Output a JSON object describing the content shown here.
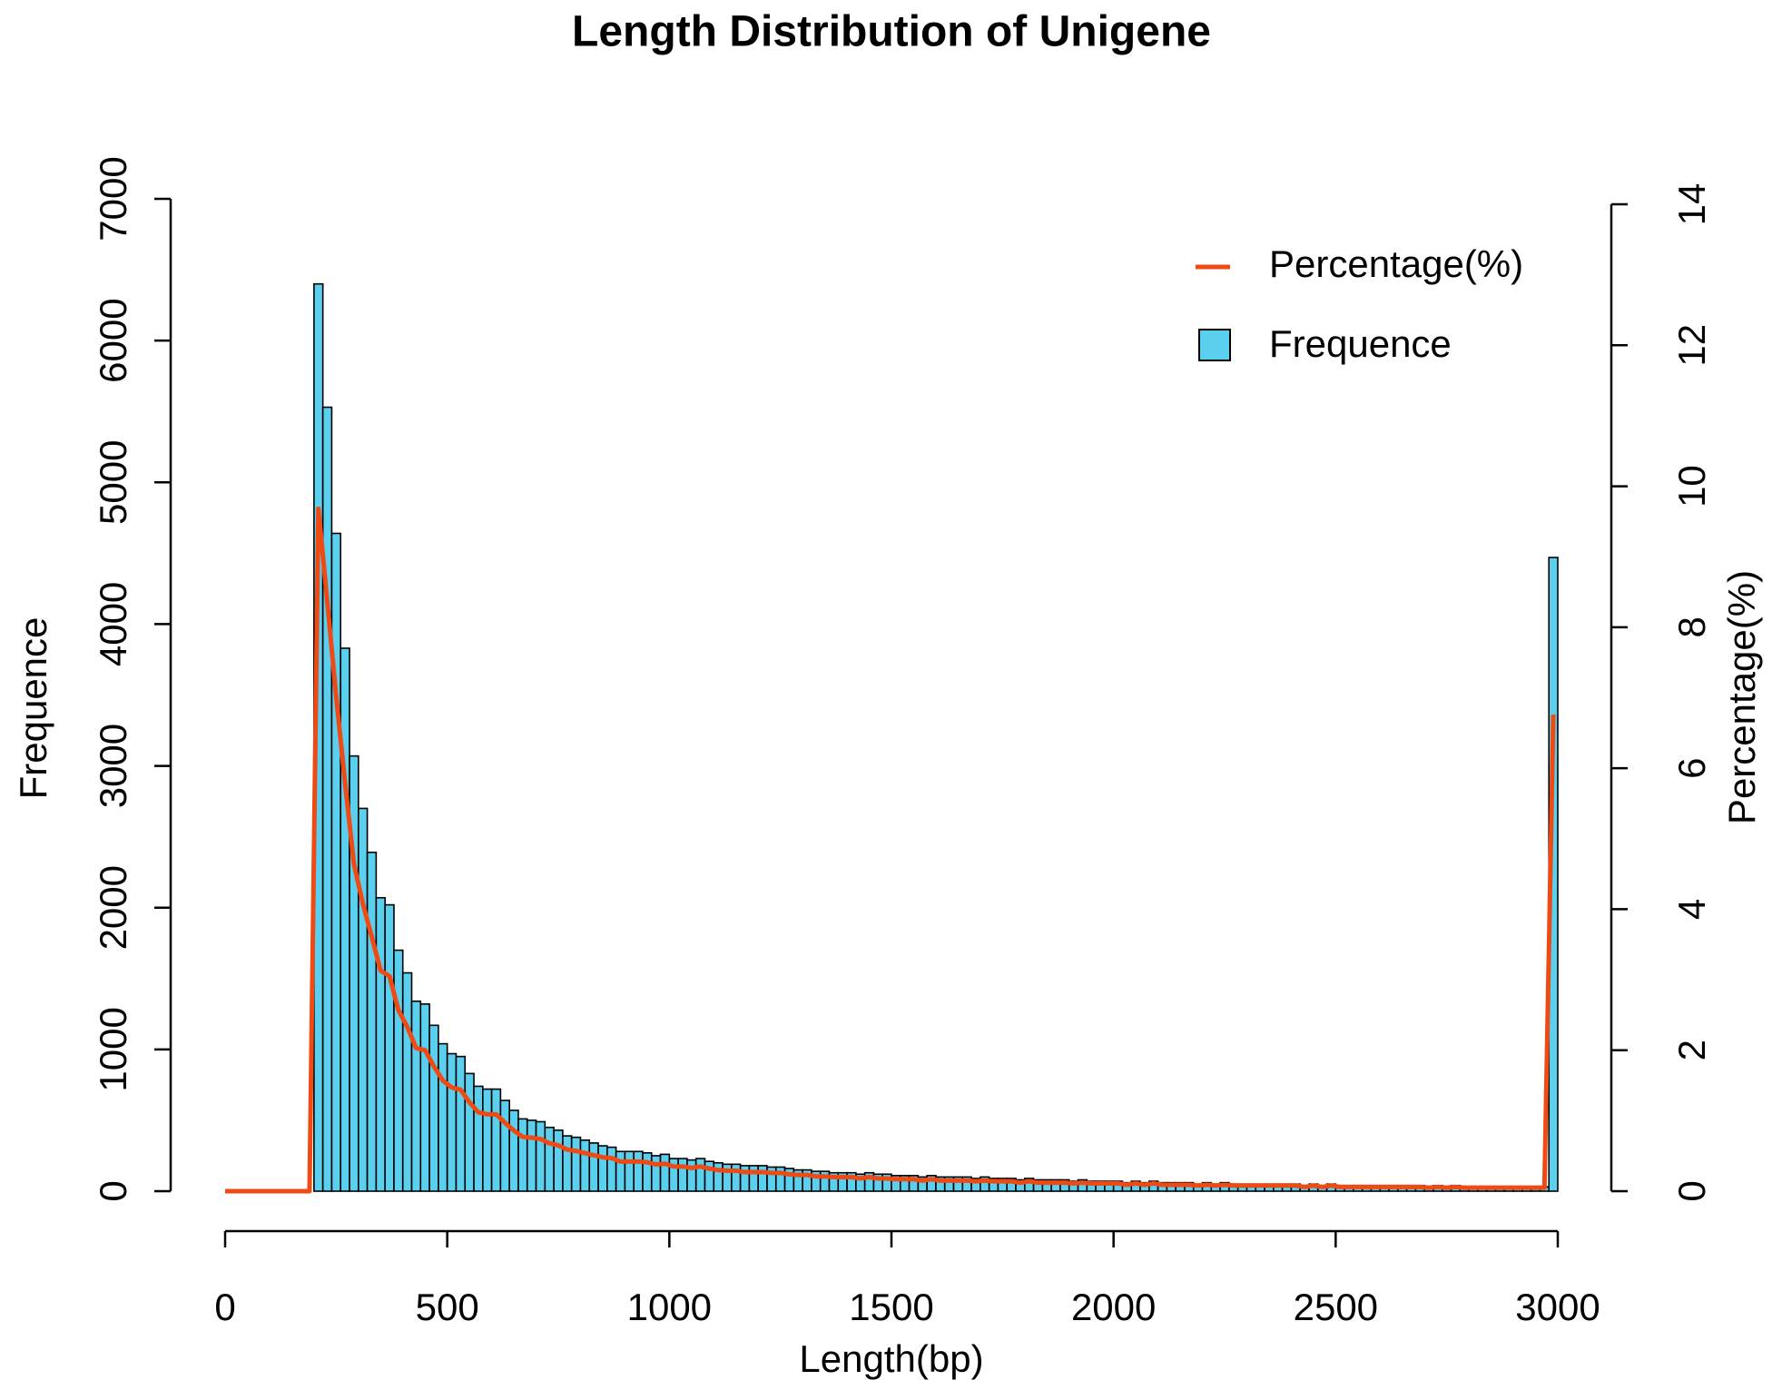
{
  "chart_data": {
    "type": "histogram",
    "title": "Length Distribution of Unigene",
    "xlabel": "Length(bp)",
    "ylabel": "Frequence",
    "y2label": "Percentage(%)",
    "name": "Frequence",
    "color": "#5bcfee",
    "bins": [
      200,
      220,
      240,
      260,
      280,
      300,
      320,
      340,
      360,
      380,
      400,
      420,
      440,
      460,
      480,
      500,
      520,
      540,
      560,
      580,
      600,
      620,
      640,
      660,
      680,
      700,
      720,
      740,
      760,
      780,
      800,
      820,
      840,
      860,
      880,
      900,
      920,
      940,
      960,
      980,
      1000,
      1020,
      1040,
      1060,
      1080,
      1100,
      1120,
      1140,
      1160,
      1180,
      1200,
      1220,
      1240,
      1260,
      1280,
      1300,
      1320,
      1340,
      1360,
      1380,
      1400,
      1420,
      1440,
      1460,
      1480,
      1500,
      1520,
      1540,
      1560,
      1580,
      1600,
      1620,
      1640,
      1660,
      1680,
      1700,
      1720,
      1740,
      1760,
      1780,
      1800,
      1820,
      1840,
      1860,
      1880,
      1900,
      1920,
      1940,
      1960,
      1980,
      2000,
      2020,
      2040,
      2060,
      2080,
      2100,
      2120,
      2140,
      2160,
      2180,
      2200,
      2220,
      2240,
      2260,
      2280,
      2300,
      2320,
      2340,
      2360,
      2380,
      2400,
      2420,
      2440,
      2460,
      2480,
      2500,
      2520,
      2540,
      2560,
      2580,
      2600,
      2620,
      2640,
      2660,
      2680,
      2700,
      2720,
      2740,
      2760,
      2780,
      2800,
      2820,
      2840,
      2860,
      2880,
      2900,
      2920,
      2940,
      2960,
      2980,
      3000
    ],
    "counts": [
      6400,
      5530,
      4640,
      3830,
      3070,
      2700,
      2390,
      2070,
      2020,
      1700,
      1540,
      1340,
      1320,
      1170,
      1040,
      970,
      950,
      830,
      740,
      720,
      720,
      640,
      570,
      510,
      500,
      490,
      450,
      430,
      390,
      380,
      360,
      340,
      320,
      310,
      280,
      280,
      280,
      270,
      250,
      260,
      230,
      230,
      220,
      230,
      210,
      200,
      190,
      190,
      180,
      180,
      180,
      170,
      170,
      160,
      150,
      150,
      140,
      140,
      130,
      130,
      130,
      120,
      130,
      120,
      120,
      110,
      110,
      110,
      100,
      110,
      100,
      100,
      100,
      100,
      90,
      100,
      90,
      90,
      90,
      80,
      90,
      80,
      80,
      80,
      80,
      70,
      80,
      70,
      70,
      70,
      70,
      60,
      70,
      60,
      70,
      60,
      60,
      60,
      60,
      50,
      60,
      50,
      60,
      50,
      50,
      50,
      50,
      50,
      50,
      50,
      50,
      40,
      50,
      40,
      50,
      40,
      40,
      40,
      40,
      40,
      40,
      40,
      40,
      40,
      40,
      30,
      40,
      30,
      40,
      30,
      30,
      30,
      30,
      30,
      30,
      30,
      30,
      30,
      30,
      4470
    ],
    "line": {
      "name": "Percentage(%)",
      "color": "#f04a14",
      "axis": "y2",
      "x": [
        0,
        190,
        210,
        230,
        250,
        270,
        290,
        310,
        330,
        350,
        370,
        390,
        410,
        430,
        450,
        470,
        490,
        510,
        530,
        550,
        570,
        590,
        610,
        630,
        650,
        670,
        690,
        710,
        730,
        750,
        770,
        790,
        810,
        830,
        850,
        870,
        890,
        910,
        930,
        950,
        970,
        990,
        1010,
        1030,
        1050,
        1070,
        1090,
        1110,
        1130,
        1150,
        1170,
        1190,
        1210,
        1230,
        1250,
        1270,
        1290,
        1310,
        1330,
        1350,
        1370,
        1390,
        1410,
        1430,
        1450,
        1470,
        1490,
        1510,
        1530,
        1550,
        1570,
        1590,
        1610,
        1630,
        1650,
        1670,
        1690,
        1710,
        1730,
        1750,
        1770,
        1790,
        1810,
        1830,
        1850,
        1870,
        1890,
        1910,
        1930,
        1950,
        1970,
        1990,
        2010,
        2030,
        2050,
        2070,
        2090,
        2110,
        2130,
        2150,
        2170,
        2190,
        2210,
        2230,
        2250,
        2270,
        2290,
        2310,
        2330,
        2350,
        2370,
        2390,
        2410,
        2430,
        2450,
        2470,
        2490,
        2510,
        2530,
        2550,
        2570,
        2590,
        2610,
        2630,
        2650,
        2670,
        2690,
        2710,
        2730,
        2750,
        2770,
        2790,
        2810,
        2830,
        2850,
        2870,
        2890,
        2910,
        2930,
        2950,
        2970,
        2990
      ],
      "values": [
        0,
        0,
        9.68,
        8.36,
        7.02,
        5.79,
        4.64,
        4.08,
        3.61,
        3.13,
        3.05,
        2.57,
        2.33,
        2.03,
        2.0,
        1.77,
        1.57,
        1.47,
        1.44,
        1.26,
        1.12,
        1.09,
        1.09,
        0.97,
        0.86,
        0.77,
        0.76,
        0.74,
        0.68,
        0.65,
        0.59,
        0.57,
        0.54,
        0.51,
        0.48,
        0.47,
        0.42,
        0.42,
        0.42,
        0.41,
        0.38,
        0.39,
        0.35,
        0.35,
        0.33,
        0.35,
        0.32,
        0.3,
        0.29,
        0.29,
        0.27,
        0.27,
        0.27,
        0.26,
        0.26,
        0.24,
        0.23,
        0.23,
        0.21,
        0.21,
        0.2,
        0.2,
        0.2,
        0.18,
        0.2,
        0.18,
        0.18,
        0.17,
        0.17,
        0.17,
        0.15,
        0.17,
        0.15,
        0.15,
        0.15,
        0.15,
        0.14,
        0.15,
        0.14,
        0.14,
        0.14,
        0.12,
        0.14,
        0.12,
        0.12,
        0.12,
        0.12,
        0.11,
        0.12,
        0.11,
        0.11,
        0.11,
        0.11,
        0.09,
        0.11,
        0.09,
        0.11,
        0.09,
        0.09,
        0.09,
        0.09,
        0.08,
        0.09,
        0.08,
        0.09,
        0.08,
        0.08,
        0.08,
        0.08,
        0.08,
        0.08,
        0.08,
        0.08,
        0.06,
        0.08,
        0.06,
        0.08,
        0.06,
        0.06,
        0.06,
        0.06,
        0.06,
        0.06,
        0.06,
        0.06,
        0.06,
        0.06,
        0.05,
        0.06,
        0.05,
        0.06,
        0.05,
        0.05,
        0.05,
        0.05,
        0.05,
        0.05,
        0.05,
        0.05,
        0.05,
        0.05,
        6.76
      ]
    },
    "xlim": [
      0,
      3000
    ],
    "xticks": [
      0,
      500,
      1000,
      1500,
      2000,
      2500,
      3000
    ],
    "ylim": [
      0,
      7000
    ],
    "yticks": [
      0,
      1000,
      2000,
      3000,
      4000,
      5000,
      6000,
      7000
    ],
    "y2lim": [
      0,
      14
    ],
    "y2ticks": [
      0,
      2,
      4,
      6,
      8,
      10,
      12,
      14
    ],
    "legend": "top-right"
  }
}
